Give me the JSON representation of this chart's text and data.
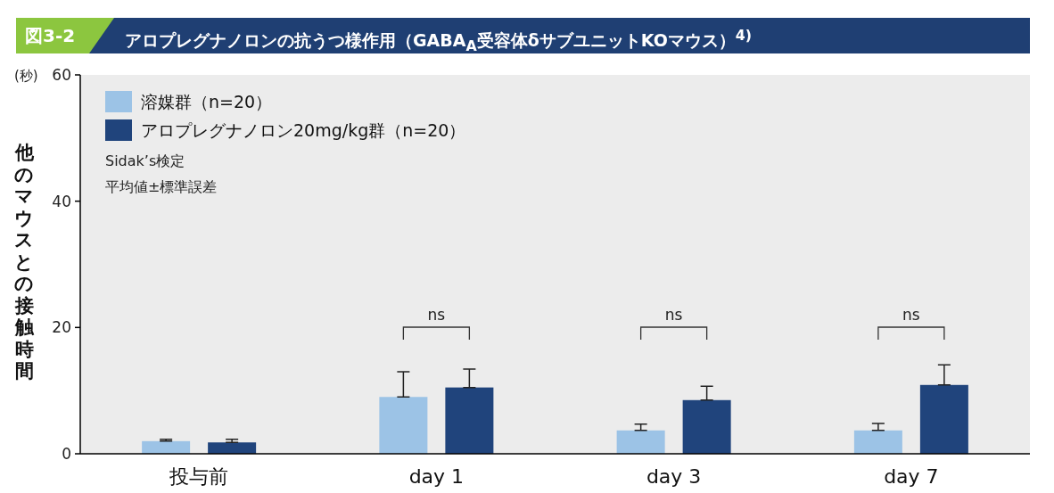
{
  "chart_data": {
    "type": "bar",
    "title": "アロプレグナノロンの抗うつ様作用（GABA$_{A}$受容体δサブユニットKOマウス）$^{4)}$",
    "ylabel": "他のマウスとの接触時間",
    "categories": [
      "投与前",
      "day 1",
      "day 3",
      "day 7"
    ],
    "series": [
      {
        "name": "溶媒群（n=20）",
        "color": "#9cc3e6",
        "values": [
          2.0,
          9.0,
          3.7,
          3.7
        ],
        "errors": [
          [
            2.0,
            2.3
          ],
          [
            9.0,
            13.0
          ],
          [
            3.7,
            4.7
          ],
          [
            3.7,
            4.8
          ]
        ]
      },
      {
        "name": "アロプレグナノロン20mg/kg群（n=20）",
        "color": "#20447c",
        "values": [
          1.8,
          10.5,
          8.5,
          10.9
        ],
        "errors": [
          [
            1.8,
            2.3
          ],
          [
            10.5,
            13.4
          ],
          [
            8.5,
            10.7
          ],
          [
            10.9,
            14.1
          ]
        ]
      }
    ],
    "ylim": [
      0,
      60
    ],
    "yticks": [
      0,
      20,
      40,
      60
    ],
    "legend": "top left",
    "grid": false,
    "annotations": [
      "図3-2",
      "(秒)",
      "Sidak’s検定",
      "平均値±標準誤差",
      "ns",
      "ns",
      "ns"
    ]
  }
}
